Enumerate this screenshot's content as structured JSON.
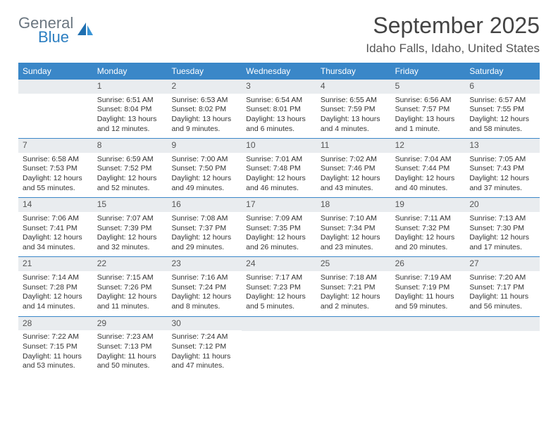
{
  "logo": {
    "word1": "General",
    "word2": "Blue"
  },
  "title": "September 2025",
  "location": "Idaho Falls, Idaho, United States",
  "colors": {
    "header_bg": "#3a87c8",
    "header_text": "#ffffff",
    "daynum_bg": "#e9ecef",
    "daynum_text": "#555555",
    "border": "#3a87c8",
    "logo_gray": "#6b7680",
    "logo_blue": "#2d7fc1",
    "page_bg": "#ffffff"
  },
  "dayNames": [
    "Sunday",
    "Monday",
    "Tuesday",
    "Wednesday",
    "Thursday",
    "Friday",
    "Saturday"
  ],
  "weeks": [
    [
      null,
      {
        "n": "1",
        "sr": "Sunrise: 6:51 AM",
        "ss": "Sunset: 8:04 PM",
        "dl": "Daylight: 13 hours and 12 minutes."
      },
      {
        "n": "2",
        "sr": "Sunrise: 6:53 AM",
        "ss": "Sunset: 8:02 PM",
        "dl": "Daylight: 13 hours and 9 minutes."
      },
      {
        "n": "3",
        "sr": "Sunrise: 6:54 AM",
        "ss": "Sunset: 8:01 PM",
        "dl": "Daylight: 13 hours and 6 minutes."
      },
      {
        "n": "4",
        "sr": "Sunrise: 6:55 AM",
        "ss": "Sunset: 7:59 PM",
        "dl": "Daylight: 13 hours and 4 minutes."
      },
      {
        "n": "5",
        "sr": "Sunrise: 6:56 AM",
        "ss": "Sunset: 7:57 PM",
        "dl": "Daylight: 13 hours and 1 minute."
      },
      {
        "n": "6",
        "sr": "Sunrise: 6:57 AM",
        "ss": "Sunset: 7:55 PM",
        "dl": "Daylight: 12 hours and 58 minutes."
      }
    ],
    [
      {
        "n": "7",
        "sr": "Sunrise: 6:58 AM",
        "ss": "Sunset: 7:53 PM",
        "dl": "Daylight: 12 hours and 55 minutes."
      },
      {
        "n": "8",
        "sr": "Sunrise: 6:59 AM",
        "ss": "Sunset: 7:52 PM",
        "dl": "Daylight: 12 hours and 52 minutes."
      },
      {
        "n": "9",
        "sr": "Sunrise: 7:00 AM",
        "ss": "Sunset: 7:50 PM",
        "dl": "Daylight: 12 hours and 49 minutes."
      },
      {
        "n": "10",
        "sr": "Sunrise: 7:01 AM",
        "ss": "Sunset: 7:48 PM",
        "dl": "Daylight: 12 hours and 46 minutes."
      },
      {
        "n": "11",
        "sr": "Sunrise: 7:02 AM",
        "ss": "Sunset: 7:46 PM",
        "dl": "Daylight: 12 hours and 43 minutes."
      },
      {
        "n": "12",
        "sr": "Sunrise: 7:04 AM",
        "ss": "Sunset: 7:44 PM",
        "dl": "Daylight: 12 hours and 40 minutes."
      },
      {
        "n": "13",
        "sr": "Sunrise: 7:05 AM",
        "ss": "Sunset: 7:43 PM",
        "dl": "Daylight: 12 hours and 37 minutes."
      }
    ],
    [
      {
        "n": "14",
        "sr": "Sunrise: 7:06 AM",
        "ss": "Sunset: 7:41 PM",
        "dl": "Daylight: 12 hours and 34 minutes."
      },
      {
        "n": "15",
        "sr": "Sunrise: 7:07 AM",
        "ss": "Sunset: 7:39 PM",
        "dl": "Daylight: 12 hours and 32 minutes."
      },
      {
        "n": "16",
        "sr": "Sunrise: 7:08 AM",
        "ss": "Sunset: 7:37 PM",
        "dl": "Daylight: 12 hours and 29 minutes."
      },
      {
        "n": "17",
        "sr": "Sunrise: 7:09 AM",
        "ss": "Sunset: 7:35 PM",
        "dl": "Daylight: 12 hours and 26 minutes."
      },
      {
        "n": "18",
        "sr": "Sunrise: 7:10 AM",
        "ss": "Sunset: 7:34 PM",
        "dl": "Daylight: 12 hours and 23 minutes."
      },
      {
        "n": "19",
        "sr": "Sunrise: 7:11 AM",
        "ss": "Sunset: 7:32 PM",
        "dl": "Daylight: 12 hours and 20 minutes."
      },
      {
        "n": "20",
        "sr": "Sunrise: 7:13 AM",
        "ss": "Sunset: 7:30 PM",
        "dl": "Daylight: 12 hours and 17 minutes."
      }
    ],
    [
      {
        "n": "21",
        "sr": "Sunrise: 7:14 AM",
        "ss": "Sunset: 7:28 PM",
        "dl": "Daylight: 12 hours and 14 minutes."
      },
      {
        "n": "22",
        "sr": "Sunrise: 7:15 AM",
        "ss": "Sunset: 7:26 PM",
        "dl": "Daylight: 12 hours and 11 minutes."
      },
      {
        "n": "23",
        "sr": "Sunrise: 7:16 AM",
        "ss": "Sunset: 7:24 PM",
        "dl": "Daylight: 12 hours and 8 minutes."
      },
      {
        "n": "24",
        "sr": "Sunrise: 7:17 AM",
        "ss": "Sunset: 7:23 PM",
        "dl": "Daylight: 12 hours and 5 minutes."
      },
      {
        "n": "25",
        "sr": "Sunrise: 7:18 AM",
        "ss": "Sunset: 7:21 PM",
        "dl": "Daylight: 12 hours and 2 minutes."
      },
      {
        "n": "26",
        "sr": "Sunrise: 7:19 AM",
        "ss": "Sunset: 7:19 PM",
        "dl": "Daylight: 11 hours and 59 minutes."
      },
      {
        "n": "27",
        "sr": "Sunrise: 7:20 AM",
        "ss": "Sunset: 7:17 PM",
        "dl": "Daylight: 11 hours and 56 minutes."
      }
    ],
    [
      {
        "n": "28",
        "sr": "Sunrise: 7:22 AM",
        "ss": "Sunset: 7:15 PM",
        "dl": "Daylight: 11 hours and 53 minutes."
      },
      {
        "n": "29",
        "sr": "Sunrise: 7:23 AM",
        "ss": "Sunset: 7:13 PM",
        "dl": "Daylight: 11 hours and 50 minutes."
      },
      {
        "n": "30",
        "sr": "Sunrise: 7:24 AM",
        "ss": "Sunset: 7:12 PM",
        "dl": "Daylight: 11 hours and 47 minutes."
      },
      null,
      null,
      null,
      null
    ]
  ]
}
